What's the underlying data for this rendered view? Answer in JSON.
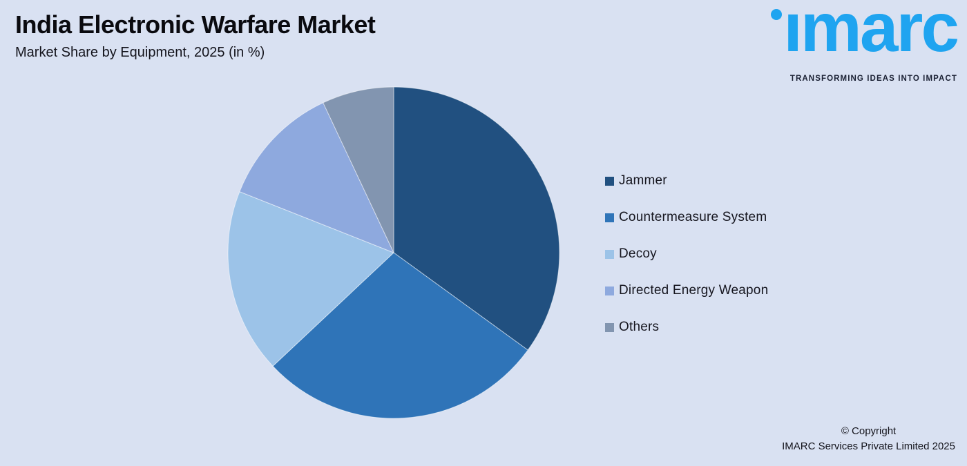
{
  "background_color": "#D9E1F2",
  "header": {
    "title": "India Electronic Warfare Market",
    "subtitle": "Market Share by Equipment, 2025 (in %)"
  },
  "logo": {
    "brand": "imarc",
    "brand_display": "ımarc",
    "tagline": "TRANSFORMING IDEAS INTO IMPACT",
    "brand_color": "#1FA4F0",
    "tagline_color": "#1B2134"
  },
  "chart_data": {
    "type": "pie",
    "title": "India Electronic Warfare Market",
    "subtitle": "Market Share by Equipment, 2025 (in %)",
    "categories": [
      "Jammer",
      "Countermeasure System",
      "Decoy",
      "Directed Energy Weapon",
      "Others"
    ],
    "values": [
      35,
      28,
      18,
      12,
      7
    ],
    "unit": "%",
    "colors": [
      "#215080",
      "#2F74B8",
      "#9CC3E8",
      "#8EA9DE",
      "#8295B0"
    ],
    "start_angle_deg": 0,
    "direction": "clockwise",
    "legend_position": "right",
    "slice_border_color": "rgba(255,255,255,0.5)"
  },
  "footer": {
    "line1": "© Copyright",
    "line2": "IMARC Services Private Limited 2025"
  }
}
